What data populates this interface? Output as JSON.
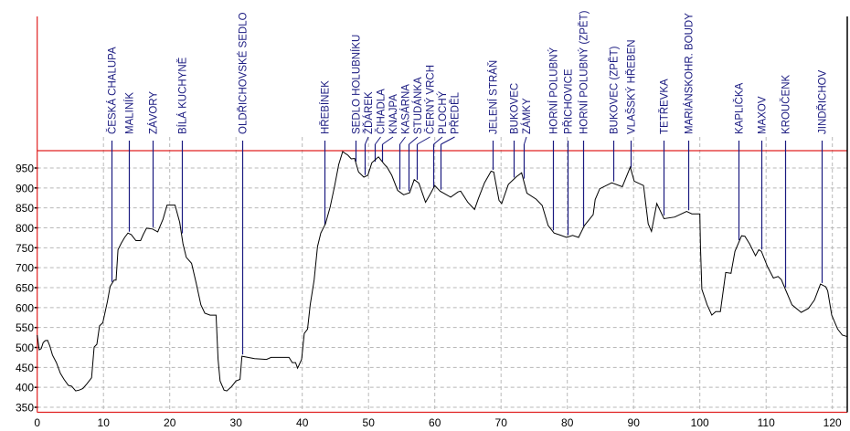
{
  "chart_data": {
    "type": "line",
    "title": "",
    "xlabel": "",
    "ylabel": "",
    "xlim": [
      0,
      122.3
    ],
    "ylim": [
      337,
      993
    ],
    "grid": true,
    "x_ticks": [
      "0",
      "10",
      "20",
      "30",
      "40",
      "50",
      "60",
      "70",
      "80",
      "90",
      "100",
      "110",
      "120"
    ],
    "y_ticks": [
      "950",
      "900",
      "850",
      "800",
      "750",
      "700",
      "650",
      "600",
      "550",
      "500",
      "450",
      "400",
      "350"
    ],
    "colors": {
      "profile": "#000000",
      "axis": "#e02020",
      "station": "#1a1a80",
      "grid": "#b8b8b8"
    },
    "profile": [
      [
        0,
        531
      ],
      [
        0.3,
        494
      ],
      [
        0.6,
        497
      ],
      [
        0.9,
        512
      ],
      [
        1.2,
        517
      ],
      [
        1.56,
        518
      ],
      [
        1.9,
        504
      ],
      [
        2.3,
        481
      ],
      [
        2.9,
        462
      ],
      [
        3.5,
        435
      ],
      [
        4.05,
        420
      ],
      [
        4.7,
        405
      ],
      [
        5.2,
        403
      ],
      [
        5.8,
        391
      ],
      [
        6.35,
        393
      ],
      [
        6.9,
        397
      ],
      [
        7.5,
        409
      ],
      [
        8.2,
        424
      ],
      [
        8.3,
        443
      ],
      [
        8.6,
        501
      ],
      [
        9.0,
        508
      ],
      [
        9.4,
        554
      ],
      [
        9.9,
        562
      ],
      [
        10.6,
        615
      ],
      [
        11.0,
        653
      ],
      [
        11.6,
        669
      ],
      [
        11.9,
        669
      ],
      [
        12.2,
        745
      ],
      [
        12.7,
        762
      ],
      [
        13.2,
        776
      ],
      [
        13.7,
        787
      ],
      [
        14.2,
        783
      ],
      [
        14.9,
        768
      ],
      [
        15.6,
        768
      ],
      [
        16.0,
        783
      ],
      [
        16.5,
        799
      ],
      [
        17.4,
        797
      ],
      [
        18.2,
        790
      ],
      [
        18.5,
        802
      ],
      [
        19.0,
        822
      ],
      [
        19.6,
        857
      ],
      [
        20.8,
        857
      ],
      [
        21.5,
        814
      ],
      [
        22.0,
        760
      ],
      [
        22.5,
        726
      ],
      [
        23.3,
        711
      ],
      [
        24.0,
        661
      ],
      [
        24.7,
        607
      ],
      [
        25.3,
        586
      ],
      [
        26.1,
        581
      ],
      [
        27.0,
        581
      ],
      [
        27.3,
        470
      ],
      [
        27.6,
        416
      ],
      [
        28.2,
        393
      ],
      [
        28.6,
        391
      ],
      [
        29.3,
        401
      ],
      [
        30.0,
        416
      ],
      [
        30.6,
        420
      ],
      [
        30.9,
        478
      ],
      [
        32.8,
        472
      ],
      [
        34.6,
        470
      ],
      [
        35.3,
        475
      ],
      [
        38.0,
        475
      ],
      [
        38.5,
        462
      ],
      [
        39.0,
        462
      ],
      [
        39.3,
        448
      ],
      [
        39.9,
        470
      ],
      [
        40.3,
        535
      ],
      [
        40.8,
        546
      ],
      [
        41.2,
        607
      ],
      [
        41.8,
        669
      ],
      [
        42.3,
        753
      ],
      [
        42.8,
        787
      ],
      [
        43.5,
        810
      ],
      [
        44.2,
        852
      ],
      [
        44.9,
        906
      ],
      [
        45.5,
        959
      ],
      [
        46.1,
        991
      ],
      [
        46.9,
        982
      ],
      [
        47.4,
        973
      ],
      [
        47.9,
        974
      ],
      [
        48.5,
        940
      ],
      [
        49.3,
        927
      ],
      [
        49.9,
        932
      ],
      [
        50.5,
        963
      ],
      [
        51.5,
        978
      ],
      [
        52.4,
        959
      ],
      [
        52.8,
        952
      ],
      [
        53.5,
        932
      ],
      [
        54.4,
        894
      ],
      [
        55.3,
        883
      ],
      [
        56.2,
        888
      ],
      [
        56.9,
        921
      ],
      [
        57.6,
        912
      ],
      [
        58.6,
        864
      ],
      [
        59.4,
        887
      ],
      [
        60.0,
        906
      ],
      [
        60.8,
        892
      ],
      [
        62.4,
        877
      ],
      [
        63.5,
        890
      ],
      [
        63.9,
        892
      ],
      [
        65.0,
        864
      ],
      [
        66.0,
        846
      ],
      [
        66.6,
        874
      ],
      [
        67.5,
        913
      ],
      [
        68.5,
        942
      ],
      [
        68.9,
        940
      ],
      [
        69.7,
        869
      ],
      [
        70.1,
        861
      ],
      [
        71.1,
        909
      ],
      [
        72.3,
        928
      ],
      [
        73.1,
        938
      ],
      [
        73.9,
        887
      ],
      [
        75.3,
        872
      ],
      [
        76.2,
        856
      ],
      [
        77.1,
        806
      ],
      [
        78.0,
        787
      ],
      [
        78.9,
        782
      ],
      [
        79.9,
        776
      ],
      [
        80.8,
        781
      ],
      [
        81.7,
        776
      ],
      [
        82.6,
        806
      ],
      [
        83.9,
        833
      ],
      [
        84.2,
        871
      ],
      [
        84.9,
        898
      ],
      [
        86.7,
        913
      ],
      [
        88.3,
        903
      ],
      [
        89.5,
        952
      ],
      [
        90.1,
        917
      ],
      [
        91.5,
        906
      ],
      [
        92.2,
        810
      ],
      [
        92.7,
        791
      ],
      [
        93.5,
        861
      ],
      [
        94.6,
        823
      ],
      [
        96.2,
        827
      ],
      [
        98.0,
        841
      ],
      [
        98.8,
        835
      ],
      [
        100.0,
        835
      ],
      [
        100.1,
        753
      ],
      [
        100.3,
        646
      ],
      [
        101.1,
        607
      ],
      [
        101.8,
        581
      ],
      [
        102.4,
        590
      ],
      [
        103.1,
        590
      ],
      [
        103.9,
        688
      ],
      [
        104.7,
        686
      ],
      [
        105.3,
        741
      ],
      [
        106.3,
        780
      ],
      [
        106.8,
        779
      ],
      [
        107.5,
        760
      ],
      [
        108.4,
        730
      ],
      [
        108.9,
        745
      ],
      [
        109.3,
        741
      ],
      [
        110.2,
        703
      ],
      [
        111.1,
        674
      ],
      [
        111.8,
        678
      ],
      [
        112.3,
        670
      ],
      [
        113.0,
        642
      ],
      [
        113.9,
        607
      ],
      [
        115.3,
        588
      ],
      [
        116.4,
        598
      ],
      [
        117.3,
        619
      ],
      [
        118.2,
        659
      ],
      [
        119.0,
        652
      ],
      [
        119.3,
        642
      ],
      [
        119.9,
        581
      ],
      [
        120.8,
        546
      ],
      [
        121.5,
        531
      ],
      [
        122.3,
        527
      ]
    ],
    "stations": [
      {
        "name": "ČESKÁ CHALUPA",
        "km": 11.25
      },
      {
        "name": "MALINÍK",
        "km": 13.85
      },
      {
        "name": "ZÁVORY",
        "km": 17.4
      },
      {
        "name": "BÍLÁ KUCHYNĚ",
        "km": 21.8
      },
      {
        "name": "OLDŘICHOVSKÉ SEDLO",
        "km": 31.0
      },
      {
        "name": "HŘEBÍNEK",
        "km": 43.3
      },
      {
        "name": "SEDLO HOLUBNÍKU",
        "km": 48.0
      },
      {
        "name": "ŽĎÁREK",
        "km": 49.4
      },
      {
        "name": "ČIHADLA",
        "km": 51.0
      },
      {
        "name": "KNAJPA",
        "km": 52.1
      },
      {
        "name": "KASÁRNA",
        "km": 54.6
      },
      {
        "name": "STUDÁNKA",
        "km": 56.1
      },
      {
        "name": "ČERNÝ VRCH",
        "km": 57.3
      },
      {
        "name": "PLOCHÝ",
        "km": 59.7
      },
      {
        "name": "PŘEDĚL",
        "km": 60.9
      },
      {
        "name": "JELENÍ STRÁŇ",
        "km": 68.7
      },
      {
        "name": "BUKOVEC",
        "km": 71.9
      },
      {
        "name": "ZÁMKY",
        "km": 73.4
      },
      {
        "name": "HORNÍ POLUBNÝ",
        "km": 77.9
      },
      {
        "name": "PŘICHOVICE",
        "km": 80.1
      },
      {
        "name": "HORNÍ POLUBNÝ (ZPĚT)",
        "km": 82.4
      },
      {
        "name": "BUKOVEC (ZPĚT)",
        "km": 86.9
      },
      {
        "name": "VLAŠSKÝ HŘEBEN",
        "km": 89.6
      },
      {
        "name": "TETŘEVKA",
        "km": 94.5
      },
      {
        "name": "MARIÁNSKOHR. BOUDY",
        "km": 98.2
      },
      {
        "name": "KAPLIČKA",
        "km": 105.9
      },
      {
        "name": "MAXOV",
        "km": 109.3
      },
      {
        "name": "KROUČENK",
        "km": 112.9
      },
      {
        "name": "JINDŘICHOV",
        "km": 118.4
      }
    ]
  }
}
